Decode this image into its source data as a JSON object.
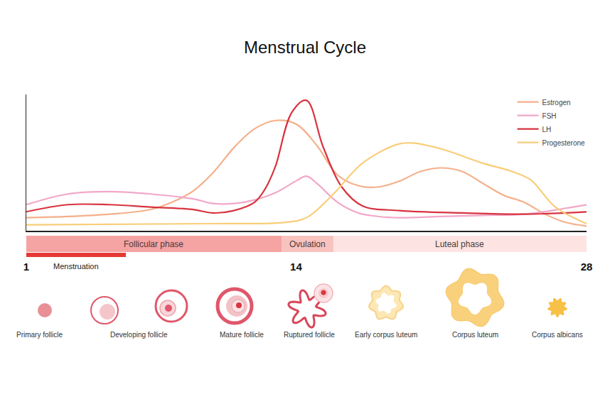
{
  "chart_data": {
    "type": "line",
    "title": "Menstrual Cycle",
    "xlim": [
      1,
      28
    ],
    "xticks": [
      1,
      14,
      28
    ],
    "ylim": [
      0,
      115
    ],
    "tick_labels": "x",
    "grid": false,
    "legend": "top right",
    "series": [
      {
        "name": "Estrogen",
        "color": "#f4b08a",
        "x": [
          1,
          3,
          5,
          7,
          8,
          9,
          10,
          11,
          12,
          13,
          14,
          15,
          16,
          17,
          18,
          19,
          20,
          21,
          22,
          23,
          24,
          25,
          26,
          27,
          28
        ],
        "values": [
          11,
          12,
          14,
          18,
          24,
          33,
          49,
          70,
          86,
          93,
          90,
          72,
          47,
          38,
          37,
          42,
          50,
          53,
          50,
          40,
          30,
          24,
          14,
          7,
          4
        ]
      },
      {
        "name": "FSH",
        "color": "#f2a7c8",
        "x": [
          1,
          3,
          5,
          7,
          9,
          10,
          11,
          12,
          13,
          14,
          14.5,
          15,
          16,
          17,
          18,
          19,
          21,
          23,
          25,
          27,
          28
        ],
        "values": [
          22,
          31,
          33,
          31,
          27,
          23,
          23,
          26,
          32,
          42,
          46,
          40,
          24,
          15,
          12,
          11,
          12,
          13,
          14,
          19,
          22
        ]
      },
      {
        "name": "LH",
        "color": "#d8333f",
        "x": [
          1,
          3,
          5,
          7,
          9,
          10,
          11,
          12,
          12.5,
          13,
          13.8,
          14.5,
          15.3,
          16.2,
          17.2,
          19,
          22,
          25,
          28
        ],
        "values": [
          16,
          22,
          22,
          20,
          18,
          15,
          17,
          24,
          35,
          54,
          100,
          110,
          71,
          37,
          21,
          17,
          15,
          14,
          16
        ]
      },
      {
        "name": "Progesterone",
        "color": "#f9cd78",
        "x": [
          1,
          10,
          13.4,
          14.5,
          15.8,
          17.2,
          18.9,
          19.6,
          21,
          23,
          24.4,
          25.3,
          26.5,
          28
        ],
        "values": [
          5,
          6,
          7,
          11,
          31,
          57,
          73,
          74,
          69,
          57,
          50,
          43,
          20,
          6
        ]
      }
    ],
    "phases": [
      {
        "label": "Follicular phase",
        "start": 1,
        "end": 13.3,
        "color": "#f5a3a3"
      },
      {
        "label": "Ovulation",
        "start": 13.3,
        "end": 15.8,
        "color": "#f8c3bf"
      },
      {
        "label": "Luteal phase",
        "start": 15.8,
        "end": 28,
        "color": "#fde3e1"
      }
    ],
    "menstruation": {
      "label": "Menstruation",
      "start": 1,
      "end": 5.8,
      "color": "#e53935"
    },
    "stages": [
      "Primary follicle",
      "Developing follicle",
      "Mature follicle",
      "Ruptured follicle",
      "Early corpus luteum",
      "Corpus luteum",
      "Corpus albicans"
    ]
  }
}
